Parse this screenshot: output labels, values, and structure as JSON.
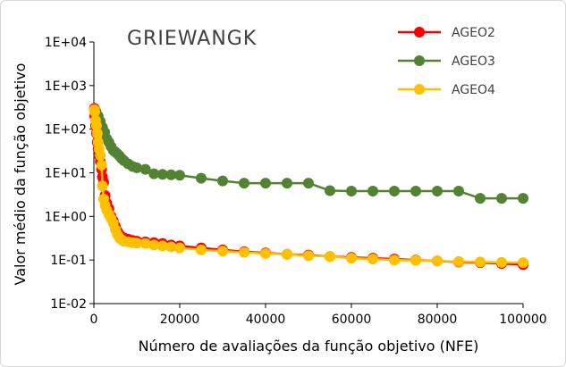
{
  "chart_data": {
    "type": "line",
    "title": "GRIEWANGK",
    "xlabel": "Número de avaliações da função objetivo (NFE)",
    "ylabel": "Valor médio da função objetivo",
    "y_scale": "log",
    "xlim": [
      0,
      100000
    ],
    "ylim": [
      0.01,
      10000
    ],
    "x_ticks": [
      "0",
      "20000",
      "40000",
      "60000",
      "80000",
      "100000"
    ],
    "y_ticks": [
      "1E-02",
      "1E-01",
      "1E+00",
      "1E+01",
      "1E+02",
      "1E+03",
      "1E+04"
    ],
    "legend_position": "top-right",
    "series": [
      {
        "name": "AGEO2",
        "color": "#ff0000",
        "points": [
          [
            100,
            300
          ],
          [
            200,
            200
          ],
          [
            400,
            120
          ],
          [
            600,
            80
          ],
          [
            800,
            50
          ],
          [
            1000,
            35
          ],
          [
            1200,
            25
          ],
          [
            1500,
            18
          ],
          [
            1800,
            12
          ],
          [
            2000,
            8
          ],
          [
            2300,
            6
          ],
          [
            2600,
            3
          ],
          [
            3000,
            2
          ],
          [
            3500,
            1.5
          ],
          [
            4000,
            1.0
          ],
          [
            4500,
            0.8
          ],
          [
            5000,
            0.6
          ],
          [
            5500,
            0.45
          ],
          [
            6000,
            0.38
          ],
          [
            6500,
            0.34
          ],
          [
            7000,
            0.32
          ],
          [
            8000,
            0.3
          ],
          [
            9000,
            0.28
          ],
          [
            10000,
            0.27
          ],
          [
            12000,
            0.26
          ],
          [
            14000,
            0.25
          ],
          [
            16000,
            0.24
          ],
          [
            18000,
            0.22
          ],
          [
            20000,
            0.21
          ],
          [
            25000,
            0.19
          ],
          [
            30000,
            0.17
          ],
          [
            35000,
            0.155
          ],
          [
            40000,
            0.145
          ],
          [
            45000,
            0.135
          ],
          [
            50000,
            0.13
          ],
          [
            55000,
            0.12
          ],
          [
            60000,
            0.115
          ],
          [
            65000,
            0.11
          ],
          [
            70000,
            0.105
          ],
          [
            75000,
            0.1
          ],
          [
            80000,
            0.095
          ],
          [
            85000,
            0.09
          ],
          [
            90000,
            0.087
          ],
          [
            95000,
            0.083
          ],
          [
            100000,
            0.078
          ]
        ]
      },
      {
        "name": "AGEO3",
        "color": "#548235",
        "points": [
          [
            100,
            290
          ],
          [
            500,
            250
          ],
          [
            1000,
            200
          ],
          [
            1500,
            150
          ],
          [
            2000,
            110
          ],
          [
            2500,
            85
          ],
          [
            3000,
            60
          ],
          [
            3500,
            50
          ],
          [
            4000,
            40
          ],
          [
            4500,
            33
          ],
          [
            5000,
            30
          ],
          [
            5500,
            27
          ],
          [
            6000,
            24
          ],
          [
            6500,
            21
          ],
          [
            7000,
            19
          ],
          [
            8000,
            16
          ],
          [
            9000,
            14
          ],
          [
            10000,
            13
          ],
          [
            12000,
            12
          ],
          [
            14000,
            9.5
          ],
          [
            16000,
            9.2
          ],
          [
            18000,
            9.0
          ],
          [
            20000,
            8.8
          ],
          [
            25000,
            7.5
          ],
          [
            30000,
            6.5
          ],
          [
            35000,
            5.8
          ],
          [
            40000,
            5.8
          ],
          [
            45000,
            5.8
          ],
          [
            50000,
            5.8
          ],
          [
            55000,
            3.9
          ],
          [
            60000,
            3.8
          ],
          [
            65000,
            3.8
          ],
          [
            70000,
            3.8
          ],
          [
            75000,
            3.8
          ],
          [
            80000,
            3.8
          ],
          [
            85000,
            3.8
          ],
          [
            90000,
            2.6
          ],
          [
            95000,
            2.6
          ],
          [
            100000,
            2.6
          ]
        ]
      },
      {
        "name": "AGEO4",
        "color": "#ffc000",
        "points": [
          [
            100,
            280
          ],
          [
            200,
            250
          ],
          [
            400,
            160
          ],
          [
            600,
            120
          ],
          [
            800,
            80
          ],
          [
            1000,
            50
          ],
          [
            1200,
            35
          ],
          [
            1500,
            25
          ],
          [
            1800,
            15
          ],
          [
            2000,
            5
          ],
          [
            2300,
            2.5
          ],
          [
            2600,
            1.8
          ],
          [
            3000,
            1.4
          ],
          [
            3500,
            1.1
          ],
          [
            4000,
            0.9
          ],
          [
            4500,
            0.7
          ],
          [
            5000,
            0.5
          ],
          [
            5500,
            0.38
          ],
          [
            6000,
            0.32
          ],
          [
            6500,
            0.29
          ],
          [
            7000,
            0.27
          ],
          [
            8000,
            0.26
          ],
          [
            9000,
            0.25
          ],
          [
            10000,
            0.245
          ],
          [
            12000,
            0.24
          ],
          [
            14000,
            0.22
          ],
          [
            16000,
            0.21
          ],
          [
            18000,
            0.2
          ],
          [
            20000,
            0.19
          ],
          [
            25000,
            0.17
          ],
          [
            30000,
            0.16
          ],
          [
            35000,
            0.15
          ],
          [
            40000,
            0.14
          ],
          [
            45000,
            0.135
          ],
          [
            50000,
            0.125
          ],
          [
            55000,
            0.12
          ],
          [
            60000,
            0.11
          ],
          [
            65000,
            0.105
          ],
          [
            70000,
            0.1
          ],
          [
            75000,
            0.098
          ],
          [
            80000,
            0.095
          ],
          [
            85000,
            0.092
          ],
          [
            90000,
            0.09
          ],
          [
            95000,
            0.088
          ],
          [
            100000,
            0.087
          ]
        ]
      }
    ]
  }
}
